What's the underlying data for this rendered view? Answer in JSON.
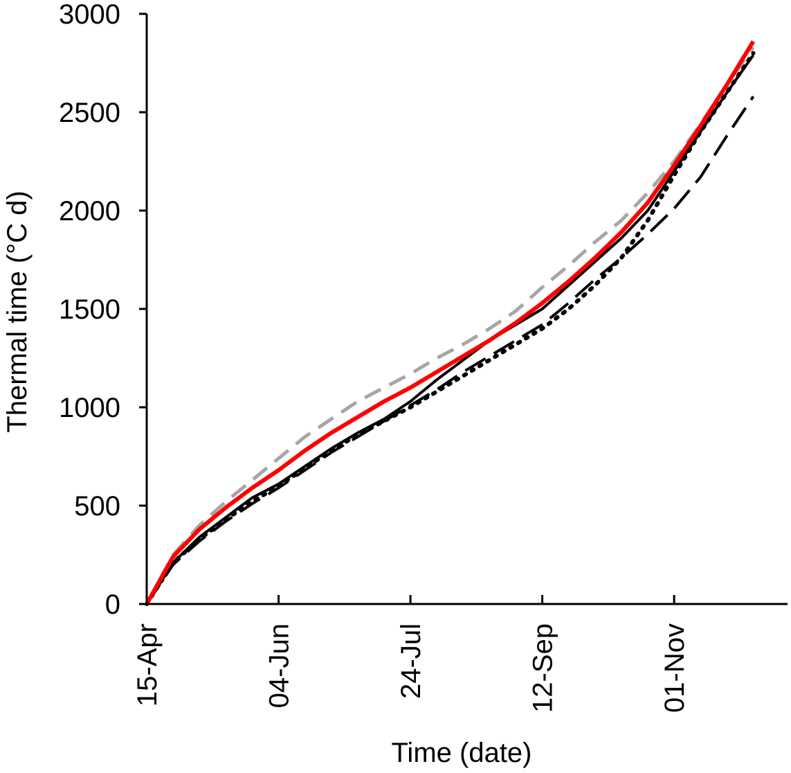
{
  "chart_data": {
    "type": "line",
    "title": "",
    "xlabel": "Time (date)",
    "ylabel": "Thermal time (°C d)",
    "ylim": [
      0,
      3000
    ],
    "xlim": [
      "15-Apr",
      "14-Dec"
    ],
    "grid": false,
    "legend": "none",
    "x_tick_labels": [
      "15-Apr",
      "04-Jun",
      "24-Jul",
      "12-Sep",
      "01-Nov"
    ],
    "y_tick_labels": [
      "0",
      "500",
      "1000",
      "1500",
      "2000",
      "2500",
      "3000"
    ],
    "series": [
      {
        "style": "dashed",
        "color": "#a6a6a6",
        "points": [
          [
            "15-Apr",
            0
          ],
          [
            "25-Apr",
            250
          ],
          [
            "05-May",
            400
          ],
          [
            "15-May",
            520
          ],
          [
            "25-May",
            630
          ],
          [
            "04-Jun",
            740
          ],
          [
            "14-Jun",
            850
          ],
          [
            "24-Jun",
            940
          ],
          [
            "04-Jul",
            1030
          ],
          [
            "14-Jul",
            1100
          ],
          [
            "24-Jul",
            1170
          ],
          [
            "03-Aug",
            1250
          ],
          [
            "13-Aug",
            1320
          ],
          [
            "23-Aug",
            1400
          ],
          [
            "02-Sep",
            1490
          ],
          [
            "12-Sep",
            1610
          ],
          [
            "22-Sep",
            1720
          ],
          [
            "02-Oct",
            1840
          ],
          [
            "12-Oct",
            1950
          ],
          [
            "22-Oct",
            2090
          ],
          [
            "01-Nov",
            2250
          ],
          [
            "11-Nov",
            2440
          ],
          [
            "21-Nov",
            2640
          ],
          [
            "01-Dec",
            2830
          ]
        ]
      },
      {
        "style": "solid",
        "color": "#ff0000",
        "points": [
          [
            "15-Apr",
            0
          ],
          [
            "25-Apr",
            240
          ],
          [
            "05-May",
            380
          ],
          [
            "15-May",
            490
          ],
          [
            "25-May",
            590
          ],
          [
            "04-Jun",
            680
          ],
          [
            "14-Jun",
            780
          ],
          [
            "24-Jun",
            870
          ],
          [
            "04-Jul",
            950
          ],
          [
            "14-Jul",
            1030
          ],
          [
            "24-Jul",
            1100
          ],
          [
            "03-Aug",
            1180
          ],
          [
            "13-Aug",
            1260
          ],
          [
            "23-Aug",
            1340
          ],
          [
            "02-Sep",
            1430
          ],
          [
            "12-Sep",
            1530
          ],
          [
            "22-Sep",
            1640
          ],
          [
            "02-Oct",
            1760
          ],
          [
            "12-Oct",
            1890
          ],
          [
            "22-Oct",
            2040
          ],
          [
            "01-Nov",
            2230
          ],
          [
            "11-Nov",
            2430
          ],
          [
            "21-Nov",
            2640
          ],
          [
            "01-Dec",
            2860
          ]
        ]
      },
      {
        "style": "solid",
        "color": "#000000",
        "points": [
          [
            "15-Apr",
            0
          ],
          [
            "25-Apr",
            210
          ],
          [
            "05-May",
            340
          ],
          [
            "15-May",
            440
          ],
          [
            "25-May",
            540
          ],
          [
            "04-Jun",
            610
          ],
          [
            "14-Jun",
            700
          ],
          [
            "24-Jun",
            790
          ],
          [
            "04-Jul",
            870
          ],
          [
            "14-Jul",
            940
          ],
          [
            "24-Jul",
            1030
          ],
          [
            "03-Aug",
            1140
          ],
          [
            "13-Aug",
            1240
          ],
          [
            "23-Aug",
            1340
          ],
          [
            "02-Sep",
            1420
          ],
          [
            "12-Sep",
            1500
          ],
          [
            "22-Sep",
            1620
          ],
          [
            "02-Oct",
            1740
          ],
          [
            "12-Oct",
            1860
          ],
          [
            "22-Oct",
            2000
          ],
          [
            "01-Nov",
            2200
          ],
          [
            "11-Nov",
            2400
          ],
          [
            "21-Nov",
            2600
          ],
          [
            "01-Dec",
            2790
          ]
        ]
      },
      {
        "style": "dotted",
        "color": "#000000",
        "points": [
          [
            "15-Apr",
            0
          ],
          [
            "25-Apr",
            210
          ],
          [
            "05-May",
            330
          ],
          [
            "15-May",
            430
          ],
          [
            "25-May",
            520
          ],
          [
            "04-Jun",
            600
          ],
          [
            "14-Jun",
            690
          ],
          [
            "24-Jun",
            780
          ],
          [
            "04-Jul",
            860
          ],
          [
            "14-Jul",
            930
          ],
          [
            "24-Jul",
            1000
          ],
          [
            "03-Aug",
            1080
          ],
          [
            "13-Aug",
            1160
          ],
          [
            "23-Aug",
            1240
          ],
          [
            "02-Sep",
            1320
          ],
          [
            "12-Sep",
            1400
          ],
          [
            "22-Sep",
            1500
          ],
          [
            "02-Oct",
            1620
          ],
          [
            "12-Oct",
            1760
          ],
          [
            "22-Oct",
            1950
          ],
          [
            "01-Nov",
            2180
          ],
          [
            "11-Nov",
            2400
          ],
          [
            "21-Nov",
            2600
          ],
          [
            "01-Dec",
            2800
          ]
        ]
      },
      {
        "style": "long-dash",
        "color": "#000000",
        "points": [
          [
            "15-Apr",
            0
          ],
          [
            "25-Apr",
            200
          ],
          [
            "05-May",
            320
          ],
          [
            "15-May",
            420
          ],
          [
            "25-May",
            510
          ],
          [
            "04-Jun",
            590
          ],
          [
            "14-Jun",
            680
          ],
          [
            "24-Jun",
            770
          ],
          [
            "04-Jul",
            850
          ],
          [
            "14-Jul",
            930
          ],
          [
            "24-Jul",
            1010
          ],
          [
            "03-Aug",
            1090
          ],
          [
            "13-Aug",
            1180
          ],
          [
            "23-Aug",
            1260
          ],
          [
            "02-Sep",
            1340
          ],
          [
            "12-Sep",
            1420
          ],
          [
            "22-Sep",
            1530
          ],
          [
            "02-Oct",
            1650
          ],
          [
            "12-Oct",
            1760
          ],
          [
            "22-Oct",
            1880
          ],
          [
            "01-Nov",
            2010
          ],
          [
            "11-Nov",
            2170
          ],
          [
            "21-Nov",
            2380
          ],
          [
            "01-Dec",
            2580
          ]
        ]
      }
    ]
  }
}
